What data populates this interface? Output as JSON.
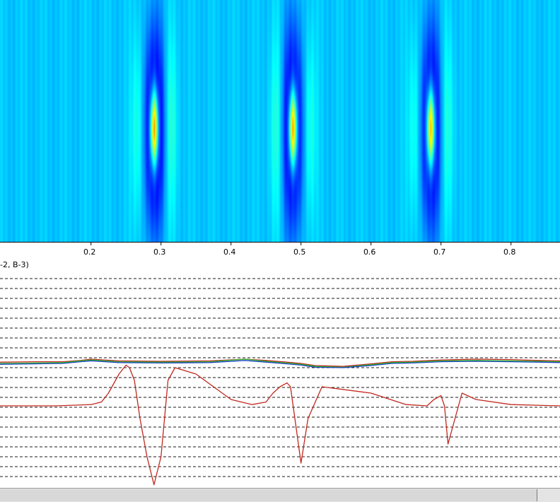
{
  "panel_label": "-2, B-3)",
  "chart_data": [
    {
      "type": "heatmap",
      "colormap": "jet",
      "x_range": [
        0.07,
        0.87
      ],
      "background_level": 0.32,
      "peaks": [
        {
          "x": 0.29,
          "intensity": 1.0
        },
        {
          "x": 0.488,
          "intensity": 0.97
        },
        {
          "x": 0.685,
          "intensity": 0.93
        }
      ],
      "x_ticks": [
        0.2,
        0.3,
        0.4,
        0.5,
        0.6,
        0.7,
        0.8
      ],
      "x_tick_labels": [
        "0.2",
        "0.3",
        "0.4",
        "0.5",
        "0.6",
        "0.7",
        "0.8"
      ]
    },
    {
      "type": "line",
      "x_range": [
        0.07,
        0.87
      ],
      "grid": "horizontal dashed",
      "series": [
        {
          "color": "#c0281e",
          "x": [
            0.07,
            0.12,
            0.16,
            0.185,
            0.2,
            0.24,
            0.3,
            0.37,
            0.42,
            0.45,
            0.48,
            0.5,
            0.52,
            0.56,
            0.6,
            0.63,
            0.66,
            0.7,
            0.75,
            0.8,
            0.84,
            0.87
          ],
          "y": [
            0.13,
            0.14,
            0.14,
            0.17,
            0.2,
            0.16,
            0.15,
            0.16,
            0.2,
            0.17,
            0.13,
            0.1,
            0.05,
            0.03,
            0.09,
            0.14,
            0.15,
            0.18,
            0.2,
            0.19,
            0.17,
            0.16
          ]
        },
        {
          "color": "#2bb52b",
          "x": [
            0.07,
            0.12,
            0.16,
            0.185,
            0.2,
            0.24,
            0.3,
            0.37,
            0.42,
            0.45,
            0.48,
            0.5,
            0.52,
            0.56,
            0.6,
            0.63,
            0.66,
            0.7,
            0.75,
            0.8,
            0.84,
            0.87
          ],
          "y": [
            0.1,
            0.11,
            0.12,
            0.16,
            0.18,
            0.14,
            0.13,
            0.14,
            0.2,
            0.15,
            0.11,
            0.08,
            0.03,
            0.01,
            0.07,
            0.12,
            0.13,
            0.16,
            0.17,
            0.16,
            0.15,
            0.14
          ]
        },
        {
          "color": "#1a3fc2",
          "x": [
            0.07,
            0.12,
            0.16,
            0.185,
            0.2,
            0.24,
            0.3,
            0.37,
            0.42,
            0.45,
            0.48,
            0.5,
            0.52,
            0.56,
            0.6,
            0.63,
            0.66,
            0.7,
            0.75,
            0.8,
            0.84,
            0.87
          ],
          "y": [
            0.08,
            0.09,
            0.1,
            0.14,
            0.16,
            0.12,
            0.11,
            0.12,
            0.17,
            0.13,
            0.09,
            0.06,
            0.01,
            0.0,
            0.05,
            0.1,
            0.11,
            0.14,
            0.15,
            0.14,
            0.13,
            0.12
          ]
        },
        {
          "color": "#c0281e",
          "x": [
            0.07,
            0.15,
            0.2,
            0.215,
            0.225,
            0.24,
            0.25,
            0.255,
            0.262,
            0.27,
            0.28,
            0.29,
            0.3,
            0.31,
            0.32,
            0.35,
            0.4,
            0.43,
            0.45,
            0.46,
            0.47,
            0.48,
            0.485,
            0.49,
            0.5,
            0.51,
            0.53,
            0.6,
            0.65,
            0.68,
            0.69,
            0.7,
            0.705,
            0.71,
            0.72,
            0.73,
            0.75,
            0.8,
            0.87
          ],
          "y": [
            0.0,
            0.0,
            0.01,
            0.03,
            0.1,
            0.25,
            0.32,
            0.3,
            0.2,
            -0.1,
            -0.4,
            -0.62,
            -0.4,
            0.2,
            0.3,
            0.25,
            0.05,
            0.01,
            0.03,
            0.1,
            0.15,
            0.18,
            0.15,
            -0.05,
            -0.45,
            -0.1,
            0.15,
            0.1,
            0.01,
            0.0,
            0.05,
            0.08,
            0.0,
            -0.3,
            -0.1,
            0.1,
            0.05,
            0.01,
            0.0
          ]
        }
      ]
    }
  ]
}
